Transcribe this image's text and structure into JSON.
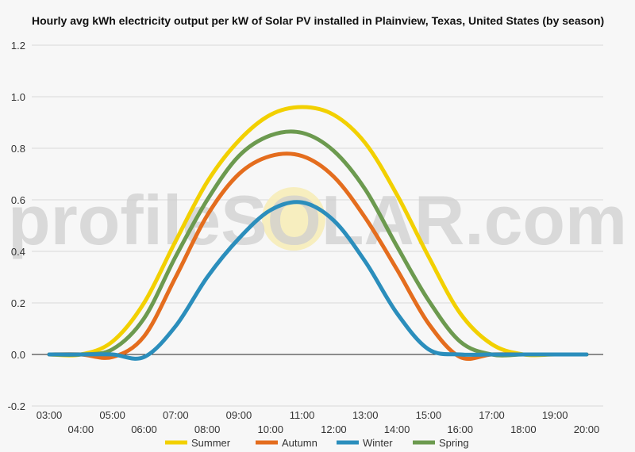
{
  "chart_data": {
    "type": "line",
    "title": "Hourly avg kWh electricity output per kW of Solar PV installed in Plainview, Texas, United States (by season)",
    "xlabel": "",
    "ylabel": "",
    "ylim": [
      -0.2,
      1.2
    ],
    "y_ticks": [
      "1.2",
      "1.0",
      "0.8",
      "0.6",
      "0.4",
      "0.2",
      "0.0",
      "-0.2"
    ],
    "y_tick_values": [
      1.2,
      1.0,
      0.8,
      0.6,
      0.4,
      0.2,
      0.0,
      -0.2
    ],
    "x_tick_labels": [
      "03:00",
      "04:00",
      "05:00",
      "06:00",
      "07:00",
      "08:00",
      "09:00",
      "10:00",
      "11:00",
      "12:00",
      "13:00",
      "14:00",
      "15:00",
      "16:00",
      "17:00",
      "18:00",
      "19:00",
      "20:00"
    ],
    "x": [
      "03:00",
      "04:00",
      "05:00",
      "06:00",
      "07:00",
      "08:00",
      "09:00",
      "10:00",
      "11:00",
      "12:00",
      "13:00",
      "14:00",
      "15:00",
      "16:00",
      "17:00",
      "18:00",
      "19:00",
      "20:00"
    ],
    "grid": true,
    "legend_position": "bottom",
    "watermark": "profileSOLAR.com",
    "series": [
      {
        "name": "Summer",
        "color": "#f2d000",
        "values": [
          0.0,
          0.0,
          0.05,
          0.2,
          0.44,
          0.67,
          0.83,
          0.93,
          0.96,
          0.93,
          0.82,
          0.62,
          0.38,
          0.16,
          0.04,
          0.0,
          0.0,
          0.0
        ]
      },
      {
        "name": "Autumn",
        "color": "#e46d1e",
        "values": [
          0.0,
          0.0,
          -0.01,
          0.07,
          0.3,
          0.54,
          0.7,
          0.77,
          0.77,
          0.69,
          0.53,
          0.33,
          0.12,
          -0.01,
          0.0,
          0.0,
          0.0,
          0.0
        ]
      },
      {
        "name": "Winter",
        "color": "#2b8ebc",
        "values": [
          0.0,
          0.0,
          0.0,
          -0.01,
          0.11,
          0.3,
          0.45,
          0.56,
          0.59,
          0.52,
          0.36,
          0.16,
          0.02,
          0.0,
          0.0,
          0.0,
          0.0,
          0.0
        ]
      },
      {
        "name": "Spring",
        "color": "#6c9a4f",
        "values": [
          0.0,
          0.0,
          0.02,
          0.14,
          0.38,
          0.6,
          0.77,
          0.85,
          0.86,
          0.79,
          0.64,
          0.42,
          0.21,
          0.05,
          0.0,
          0.0,
          0.0,
          0.0
        ]
      }
    ]
  }
}
